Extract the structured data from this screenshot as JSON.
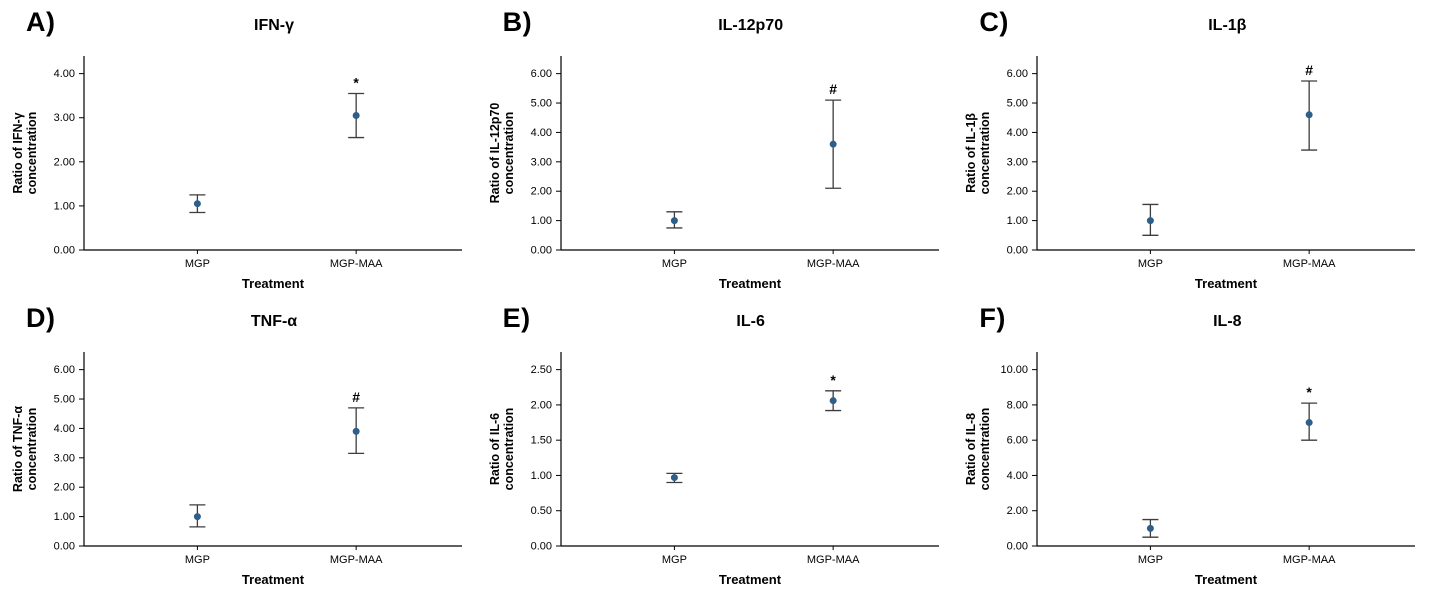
{
  "figure": {
    "background": "#ffffff",
    "axis_color": "#000000",
    "point_color": "#2e5f8a",
    "errorbar_color": "#3d3d3d",
    "x_axis_label": "Treatment",
    "categories": [
      "MGP",
      "MGP-MAA"
    ]
  },
  "chart_data": [
    {
      "type": "scatter",
      "panel_label": "A)",
      "title": "IFN-γ",
      "ylabel_lines": [
        "Ratio of IFN-γ",
        "concentration"
      ],
      "xlabel": "Treatment",
      "categories": [
        "MGP",
        "MGP-MAA"
      ],
      "yticks": [
        0,
        1,
        2,
        3,
        4
      ],
      "ylim": [
        0,
        4
      ],
      "grid": false,
      "points": [
        {
          "category": "MGP",
          "y": 1.05,
          "ci_lower": 0.85,
          "ci_upper": 1.25,
          "marker": ""
        },
        {
          "category": "MGP-MAA",
          "y": 3.05,
          "ci_lower": 2.55,
          "ci_upper": 3.55,
          "marker": "*"
        }
      ]
    },
    {
      "type": "scatter",
      "panel_label": "B)",
      "title": "IL-12p70",
      "ylabel_lines": [
        "Ratio of IL-12p70",
        "concentration"
      ],
      "xlabel": "Treatment",
      "categories": [
        "MGP",
        "MGP-MAA"
      ],
      "yticks": [
        0,
        1,
        2,
        3,
        4,
        5,
        6
      ],
      "ylim": [
        0,
        6
      ],
      "grid": false,
      "points": [
        {
          "category": "MGP",
          "y": 1.0,
          "ci_lower": 0.75,
          "ci_upper": 1.3,
          "marker": ""
        },
        {
          "category": "MGP-MAA",
          "y": 3.6,
          "ci_lower": 2.1,
          "ci_upper": 5.1,
          "marker": "#"
        }
      ]
    },
    {
      "type": "scatter",
      "panel_label": "C)",
      "title": "IL-1β",
      "ylabel_lines": [
        "Ratio of IL-1β",
        "concentration"
      ],
      "xlabel": "Treatment",
      "categories": [
        "MGP",
        "MGP-MAA"
      ],
      "yticks": [
        0,
        1,
        2,
        3,
        4,
        5,
        6
      ],
      "ylim": [
        0,
        6
      ],
      "grid": false,
      "points": [
        {
          "category": "MGP",
          "y": 1.0,
          "ci_lower": 0.5,
          "ci_upper": 1.55,
          "marker": ""
        },
        {
          "category": "MGP-MAA",
          "y": 4.6,
          "ci_lower": 3.4,
          "ci_upper": 5.75,
          "marker": "#"
        }
      ]
    },
    {
      "type": "scatter",
      "panel_label": "D)",
      "title": "TNF-α",
      "ylabel_lines": [
        "Ratio of TNF-α",
        "concentration"
      ],
      "xlabel": "Treatment",
      "categories": [
        "MGP",
        "MGP-MAA"
      ],
      "yticks": [
        0,
        1,
        2,
        3,
        4,
        5,
        6
      ],
      "ylim": [
        0,
        6
      ],
      "grid": false,
      "points": [
        {
          "category": "MGP",
          "y": 1.0,
          "ci_lower": 0.65,
          "ci_upper": 1.4,
          "marker": ""
        },
        {
          "category": "MGP-MAA",
          "y": 3.9,
          "ci_lower": 3.15,
          "ci_upper": 4.7,
          "marker": "#"
        }
      ]
    },
    {
      "type": "scatter",
      "panel_label": "E)",
      "title": "IL-6",
      "ylabel_lines": [
        "Ratio of IL-6",
        "concentration"
      ],
      "xlabel": "Treatment",
      "categories": [
        "MGP",
        "MGP-MAA"
      ],
      "yticks": [
        0,
        0.5,
        1,
        1.5,
        2,
        2.5
      ],
      "ylim": [
        0,
        2.5
      ],
      "grid": false,
      "points": [
        {
          "category": "MGP",
          "y": 0.97,
          "ci_lower": 0.9,
          "ci_upper": 1.03,
          "marker": ""
        },
        {
          "category": "MGP-MAA",
          "y": 2.06,
          "ci_lower": 1.92,
          "ci_upper": 2.2,
          "marker": "*"
        }
      ]
    },
    {
      "type": "scatter",
      "panel_label": "F)",
      "title": "IL-8",
      "ylabel_lines": [
        "Ratio of IL-8",
        "concentration"
      ],
      "xlabel": "Treatment",
      "categories": [
        "MGP",
        "MGP-MAA"
      ],
      "yticks": [
        0,
        2,
        4,
        6,
        8,
        10
      ],
      "ylim": [
        0,
        10
      ],
      "grid": false,
      "points": [
        {
          "category": "MGP",
          "y": 1.0,
          "ci_lower": 0.5,
          "ci_upper": 1.5,
          "marker": ""
        },
        {
          "category": "MGP-MAA",
          "y": 7.0,
          "ci_lower": 6.0,
          "ci_upper": 8.1,
          "marker": "*"
        }
      ]
    }
  ]
}
